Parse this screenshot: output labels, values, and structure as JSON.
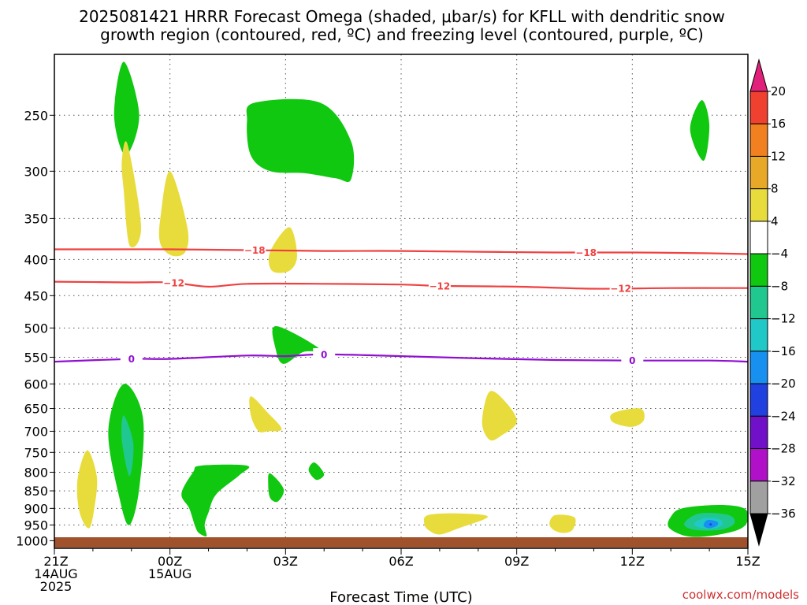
{
  "chart_data": {
    "type": "heatmap",
    "title_line1": "2025081421 HRRR Forecast Omega (shaded, μbar/s) for KFLL with dendritic snow",
    "title_line2": "growth region (contoured, red, ºC) and freezing level (contoured, purple, ºC)",
    "xlabel": "Forecast Time (UTC)",
    "ylabel": "",
    "y_scale": "log-pressure",
    "ylim": [
      1025,
      205
    ],
    "xlim": [
      21,
      39
    ],
    "grid": true,
    "x_ticks": [
      {
        "hour": 21,
        "lines": [
          "21Z",
          "14AUG",
          "2025"
        ]
      },
      {
        "hour": 24,
        "lines": [
          "00Z",
          "15AUG"
        ]
      },
      {
        "hour": 27,
        "lines": [
          "03Z"
        ]
      },
      {
        "hour": 30,
        "lines": [
          "06Z"
        ]
      },
      {
        "hour": 33,
        "lines": [
          "09Z"
        ]
      },
      {
        "hour": 36,
        "lines": [
          "12Z"
        ]
      },
      {
        "hour": 39,
        "lines": [
          "15Z"
        ]
      }
    ],
    "y_ticks": [
      250,
      300,
      350,
      400,
      450,
      500,
      550,
      600,
      650,
      700,
      750,
      800,
      850,
      900,
      950,
      1000
    ],
    "colorbar": {
      "labels": [
        "20",
        "16",
        "12",
        "8",
        "4",
        "−4",
        "−8",
        "−12",
        "−16",
        "−20",
        "−24",
        "−28",
        "−32",
        "−36"
      ],
      "bins": [
        {
          "lo": 20,
          "hi": 24,
          "color": "#e0207a"
        },
        {
          "lo": 16,
          "hi": 20,
          "color": "#f04030"
        },
        {
          "lo": 12,
          "hi": 16,
          "color": "#f08020"
        },
        {
          "lo": 8,
          "hi": 12,
          "color": "#e8a828"
        },
        {
          "lo": 4,
          "hi": 8,
          "color": "#e8dc3c"
        },
        {
          "lo": -4,
          "hi": 4,
          "color": "#ffffff"
        },
        {
          "lo": -8,
          "hi": -4,
          "color": "#10c810"
        },
        {
          "lo": -12,
          "hi": -8,
          "color": "#20c890"
        },
        {
          "lo": -16,
          "hi": -12,
          "color": "#20c8c8"
        },
        {
          "lo": -20,
          "hi": -16,
          "color": "#1890f0"
        },
        {
          "lo": -24,
          "hi": -20,
          "color": "#2040e0"
        },
        {
          "lo": -28,
          "hi": -24,
          "color": "#7010c8"
        },
        {
          "lo": -32,
          "hi": -28,
          "color": "#b010c8"
        },
        {
          "lo": -36,
          "hi": -32,
          "color": "#a0a0a0"
        },
        {
          "lo": -40,
          "hi": -36,
          "color": "#000000"
        }
      ]
    },
    "omega_regions": [
      {
        "name": "green-upper-1",
        "level": -4,
        "color": "#10c810",
        "points": [
          [
            22.8,
            210
          ],
          [
            23.2,
            250
          ],
          [
            22.85,
            285
          ],
          [
            22.55,
            250
          ]
        ]
      },
      {
        "name": "green-upper-2",
        "level": -4,
        "color": "#10c810",
        "points": [
          [
            26.2,
            240
          ],
          [
            27.9,
            240
          ],
          [
            28.7,
            272
          ],
          [
            28.7,
            308
          ],
          [
            28.3,
            307
          ],
          [
            27.5,
            302
          ],
          [
            26.6,
            300
          ],
          [
            26.1,
            285
          ],
          [
            26.0,
            255
          ]
        ]
      },
      {
        "name": "green-upper-3",
        "level": -4,
        "color": "#10c810",
        "points": [
          [
            37.8,
            238
          ],
          [
            38.0,
            258
          ],
          [
            37.85,
            290
          ],
          [
            37.5,
            262
          ]
        ]
      },
      {
        "name": "green-mid",
        "level": -4,
        "color": "#10c810",
        "points": [
          [
            26.75,
            497
          ],
          [
            27.9,
            536
          ],
          [
            27.45,
            541
          ],
          [
            26.95,
            562
          ],
          [
            26.75,
            537
          ]
        ]
      },
      {
        "name": "green-low-1",
        "level": -4,
        "color": "#10c810",
        "points": [
          [
            22.8,
            600
          ],
          [
            23.3,
            670
          ],
          [
            23.2,
            845
          ],
          [
            22.95,
            950
          ],
          [
            22.7,
            875
          ],
          [
            22.4,
            700
          ]
        ]
      },
      {
        "name": "green-low-2",
        "level": -4,
        "color": "#10c810",
        "points": [
          [
            24.8,
            783
          ],
          [
            26.0,
            783
          ],
          [
            25.8,
            808
          ],
          [
            25.2,
            860
          ],
          [
            25.0,
            912
          ],
          [
            24.9,
            950
          ],
          [
            24.95,
            985
          ],
          [
            24.75,
            975
          ],
          [
            24.65,
            953
          ],
          [
            24.5,
            900
          ],
          [
            24.3,
            858
          ],
          [
            24.6,
            800
          ]
        ]
      },
      {
        "name": "green-low-3",
        "level": -4,
        "color": "#10c810",
        "points": [
          [
            26.6,
            803
          ],
          [
            26.95,
            845
          ],
          [
            26.8,
            880
          ],
          [
            26.6,
            870
          ],
          [
            26.55,
            830
          ]
        ]
      },
      {
        "name": "green-low-4",
        "level": -4,
        "color": "#10c810",
        "points": [
          [
            27.75,
            775
          ],
          [
            28.0,
            805
          ],
          [
            27.8,
            820
          ],
          [
            27.6,
            795
          ]
        ]
      },
      {
        "name": "green-low-5",
        "level": -4,
        "color": "#10c810",
        "points": [
          [
            37.3,
            900
          ],
          [
            38.25,
            890
          ],
          [
            38.9,
            900
          ],
          [
            39.0,
            935
          ],
          [
            38.75,
            965
          ],
          [
            38.0,
            985
          ],
          [
            37.4,
            985
          ],
          [
            36.95,
            958
          ],
          [
            37.0,
            925
          ]
        ]
      },
      {
        "name": "teal-low-1",
        "level": -8,
        "color": "#20c890",
        "points": [
          [
            22.8,
            665
          ],
          [
            23.05,
            730
          ],
          [
            22.95,
            810
          ],
          [
            22.75,
            720
          ]
        ]
      },
      {
        "name": "teal-low-2",
        "level": -8,
        "color": "#20c890",
        "points": [
          [
            37.75,
            915
          ],
          [
            38.5,
            920
          ],
          [
            38.65,
            945
          ],
          [
            38.3,
            965
          ],
          [
            37.6,
            965
          ],
          [
            37.35,
            945
          ]
        ]
      },
      {
        "name": "cyan-low",
        "level": -12,
        "color": "#20c8c8",
        "points": [
          [
            37.9,
            928
          ],
          [
            38.25,
            932
          ],
          [
            38.35,
            947
          ],
          [
            38.15,
            960
          ],
          [
            37.8,
            960
          ],
          [
            37.6,
            946
          ]
        ]
      },
      {
        "name": "blue-low",
        "level": -16,
        "color": "#1890f0",
        "points": [
          [
            37.95,
            935
          ],
          [
            38.2,
            940
          ],
          [
            38.2,
            952
          ],
          [
            38.0,
            960
          ],
          [
            37.85,
            952
          ]
        ]
      },
      {
        "name": "darkblue-dot",
        "level": -20,
        "color": "#2040e0",
        "points": [
          [
            38.02,
            945
          ],
          [
            38.07,
            947
          ],
          [
            38.05,
            952
          ],
          [
            38.0,
            950
          ]
        ]
      },
      {
        "name": "yellow-upper-1",
        "level": 4,
        "color": "#e8dc3c",
        "points": [
          [
            22.9,
            275
          ],
          [
            23.25,
            360
          ],
          [
            22.95,
            382
          ],
          [
            22.8,
            320
          ],
          [
            22.75,
            290
          ]
        ]
      },
      {
        "name": "yellow-upper-2",
        "level": 4,
        "color": "#e8dc3c",
        "points": [
          [
            24.0,
            300
          ],
          [
            24.45,
            360
          ],
          [
            24.4,
            390
          ],
          [
            24.05,
            395
          ],
          [
            23.75,
            380
          ],
          [
            23.75,
            350
          ]
        ]
      },
      {
        "name": "yellow-upper-3",
        "level": 4,
        "color": "#e8dc3c",
        "points": [
          [
            27.1,
            360
          ],
          [
            27.3,
            395
          ],
          [
            27.1,
            415
          ],
          [
            26.65,
            415
          ],
          [
            26.6,
            390
          ]
        ]
      },
      {
        "name": "yellow-mid-1",
        "level": 4,
        "color": "#e8dc3c",
        "points": [
          [
            26.1,
            625
          ],
          [
            26.55,
            660
          ],
          [
            26.9,
            695
          ],
          [
            26.55,
            700
          ],
          [
            26.3,
            700
          ],
          [
            26.1,
            665
          ]
        ]
      },
      {
        "name": "yellow-mid-2",
        "level": 4,
        "color": "#e8dc3c",
        "points": [
          [
            32.3,
            615
          ],
          [
            32.75,
            640
          ],
          [
            33.0,
            680
          ],
          [
            32.6,
            710
          ],
          [
            32.3,
            720
          ],
          [
            32.1,
            680
          ]
        ]
      },
      {
        "name": "yellow-mid-3",
        "level": 4,
        "color": "#e8dc3c",
        "points": [
          [
            35.5,
            660
          ],
          [
            36.2,
            650
          ],
          [
            36.3,
            675
          ],
          [
            36.0,
            690
          ],
          [
            35.5,
            680
          ]
        ]
      },
      {
        "name": "yellow-low-1",
        "level": 4,
        "color": "#e8dc3c",
        "points": [
          [
            21.85,
            745
          ],
          [
            22.1,
            810
          ],
          [
            22.05,
            890
          ],
          [
            21.9,
            960
          ],
          [
            21.65,
            910
          ],
          [
            21.6,
            820
          ]
        ]
      },
      {
        "name": "yellow-low-2",
        "level": 4,
        "color": "#e8dc3c",
        "points": [
          [
            30.7,
            920
          ],
          [
            31.5,
            915
          ],
          [
            32.25,
            925
          ],
          [
            31.5,
            960
          ],
          [
            31.0,
            980
          ],
          [
            30.7,
            965
          ],
          [
            30.6,
            945
          ]
        ]
      },
      {
        "name": "yellow-low-3",
        "level": 4,
        "color": "#e8dc3c",
        "points": [
          [
            34.0,
            920
          ],
          [
            34.5,
            927
          ],
          [
            34.45,
            965
          ],
          [
            34.2,
            975
          ],
          [
            33.95,
            965
          ],
          [
            33.85,
            945
          ]
        ]
      }
    ],
    "contours": [
      {
        "value": -18,
        "label": "−18",
        "color": "#f04040",
        "points": [
          [
            21,
            387
          ],
          [
            22,
            387
          ],
          [
            24,
            387
          ],
          [
            26,
            388
          ],
          [
            28,
            389
          ],
          [
            30,
            389
          ],
          [
            32,
            390
          ],
          [
            34,
            391
          ],
          [
            36,
            391
          ],
          [
            38,
            392
          ],
          [
            39,
            393
          ]
        ],
        "label_hours": [
          26.2,
          34.8
        ]
      },
      {
        "value": -12,
        "label": "−12",
        "color": "#f04040",
        "points": [
          [
            21,
            430
          ],
          [
            23,
            431
          ],
          [
            24,
            431
          ],
          [
            25,
            437
          ],
          [
            26,
            433
          ],
          [
            28,
            433
          ],
          [
            30,
            434
          ],
          [
            31,
            436
          ],
          [
            33,
            437
          ],
          [
            35,
            440
          ],
          [
            37,
            439
          ],
          [
            39,
            439
          ]
        ],
        "label_hours": [
          24.1,
          31.0,
          35.7
        ]
      },
      {
        "value": 0,
        "label": "0",
        "color": "#9010d0",
        "points": [
          [
            21,
            558
          ],
          [
            23,
            553
          ],
          [
            24,
            553
          ],
          [
            26,
            547
          ],
          [
            27,
            548
          ],
          [
            28,
            545
          ],
          [
            30,
            548
          ],
          [
            32,
            552
          ],
          [
            34,
            555
          ],
          [
            36,
            556
          ],
          [
            38,
            556
          ],
          [
            39,
            558
          ]
        ],
        "label_hours": [
          23.0,
          28.0,
          36.0
        ]
      }
    ]
  },
  "credit": "coolwx.com/models"
}
